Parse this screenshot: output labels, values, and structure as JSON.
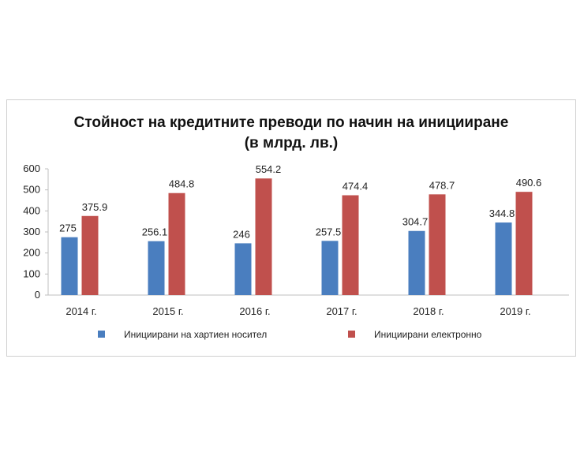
{
  "chart_data": {
    "type": "bar",
    "title_line1": "Стойност на кредитните преводи по начин на иницииране",
    "title_line2": "(в млрд. лв.)",
    "categories": [
      "2014 г.",
      "2015 г.",
      "2016 г.",
      "2017 г.",
      "2018 г.",
      "2019 г."
    ],
    "series": [
      {
        "name": "Инициирани на хартиен носител",
        "color": "#4a7ebf",
        "values": [
          275,
          256.1,
          246,
          257.5,
          304.7,
          344.8
        ],
        "labels": [
          "275",
          "256.1",
          "246",
          "257.5",
          "304.7",
          "344.8"
        ]
      },
      {
        "name": "Инициирани електронно",
        "color": "#c0504d",
        "values": [
          375.9,
          484.8,
          554.2,
          474.4,
          478.7,
          490.6
        ],
        "labels": [
          "375.9",
          "484.8",
          "554.2",
          "474.4",
          "478.7",
          "490.6"
        ]
      }
    ],
    "yticks": [
      "0",
      "100",
      "200",
      "300",
      "400",
      "500",
      "600"
    ],
    "ylim": [
      0,
      600
    ],
    "grid": false,
    "legend_position": "bottom"
  }
}
